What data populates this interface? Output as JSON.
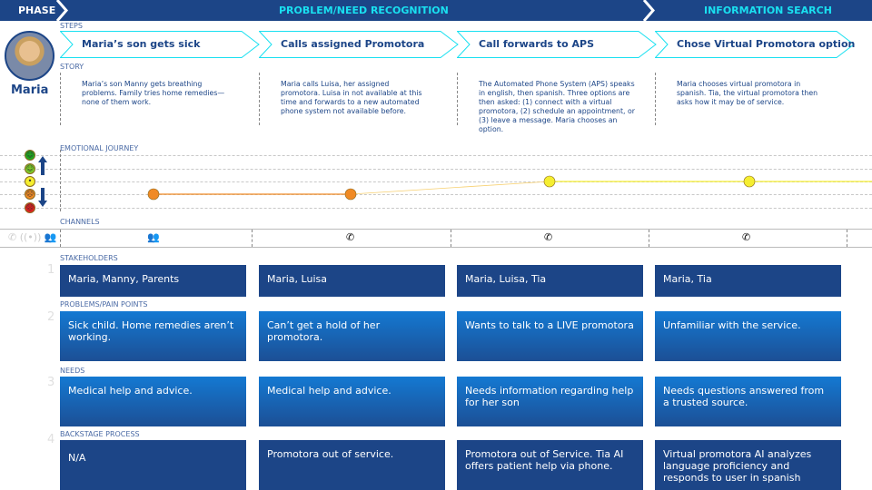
{
  "phase": {
    "label": "PHASE",
    "phases": [
      "PROBLEM/NEED RECOGNITION",
      "INFORMATION SEARCH"
    ]
  },
  "persona": {
    "name": "Maria"
  },
  "sections": {
    "steps": "STEPS",
    "story": "STORY",
    "emotional": "EMOTIONAL JOURNEY",
    "channels": "CHANNELS",
    "stakeholders": "STAKEHOLDERS",
    "problems": "PROBLEMS/PAIN POINTS",
    "needs": "NEEDS",
    "backstage": "BACKSTAGE PROCESS"
  },
  "row_numbers": [
    "1",
    "2",
    "3",
    "4"
  ],
  "columns": [
    {
      "step": "Maria’s son gets sick",
      "story": "Maria’s son Manny gets breathing problems. Family tries home remedies—none of them work.",
      "emotion": "unhappy",
      "channel": "people-icon",
      "stakeholders": "Maria, Manny, Parents",
      "problems": "Sick child. Home remedies aren’t working.",
      "needs": "Medical help and advice.",
      "backstage": "N/A"
    },
    {
      "step": "Calls assigned Promotora",
      "story": "Maria calls Luisa, her assigned promotora. Luisa in not available at this time and forwards to a new automated phone system not available before.",
      "emotion": "unhappy",
      "channel": "phone-icon",
      "stakeholders": "Maria, Luisa",
      "problems": "Can’t get a hold of her promotora.",
      "needs": "Medical help and advice.",
      "backstage": "Promotora out of service."
    },
    {
      "step": "Call forwards to APS",
      "story": "The Automated Phone System (APS) speaks in english, then spanish. Three options are then asked: (1) connect with a virtual promotora, (2) schedule an appointment, or (3) leave a message. Maria chooses an option.",
      "emotion": "neutral",
      "channel": "phone-icon",
      "stakeholders": "Maria, Luisa, Tia",
      "problems": "Wants to talk to a LIVE promotora",
      "needs": "Needs information regarding help for her son",
      "backstage": "Promotora out of Service. Tia AI offers patient help via phone."
    },
    {
      "step": "Chose Virtual Promotora option",
      "story": "Maria chooses virtual promotora in spanish. Tia, the virtual promotora then asks how it may be of service.",
      "emotion": "neutral",
      "channel": "phone-icon",
      "stakeholders": "Maria, Tia",
      "problems": "Unfamiliar with the service.",
      "needs": "Needs questions answered from a trusted source.",
      "backstage": "Virtual promotora AI analyzes language proficiency and responds to user in spanish"
    }
  ],
  "emotion_scale": [
    "very-happy",
    "happy",
    "neutral",
    "unhappy",
    "angry"
  ],
  "colors": {
    "navy": "#1c4587",
    "cyan": "#19e0f0",
    "very-happy": "#1fa81f",
    "happy": "#7ccc2a",
    "neutral": "#f5ee30",
    "unhappy": "#f08a24",
    "angry": "#e02020"
  }
}
